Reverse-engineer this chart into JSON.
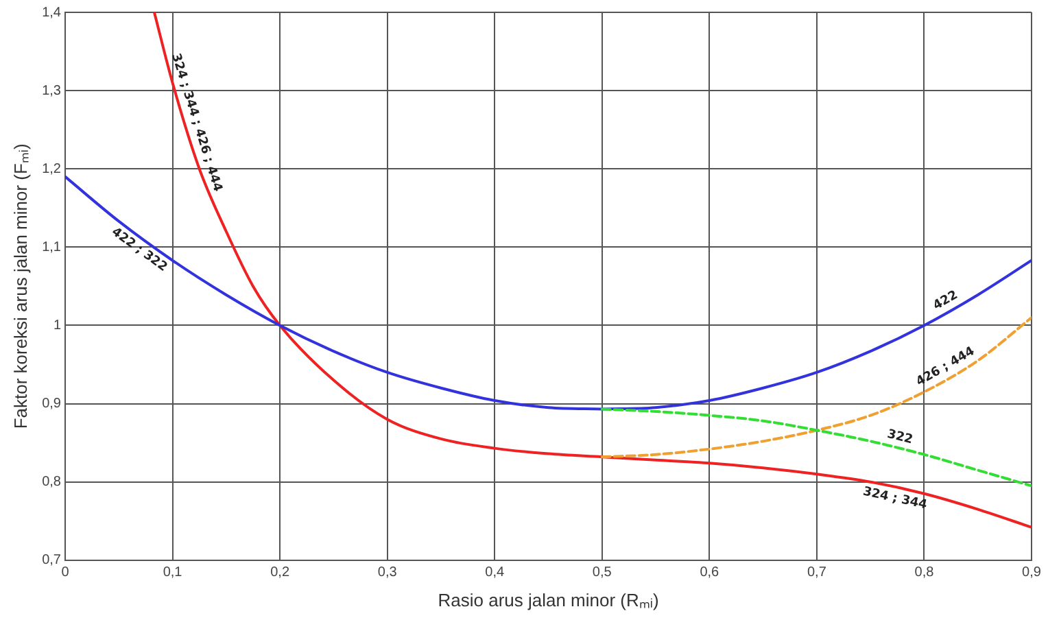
{
  "chart_data": {
    "type": "line",
    "xlabel": "Rasio arus jalan minor (Rₘᵢ)",
    "ylabel": "Faktor koreksi arus jalan minor (Fₘᵢ)",
    "xlim": [
      0,
      0.9
    ],
    "ylim": [
      0.7,
      1.4
    ],
    "xticks": [
      0,
      {
        "value": 0.1,
        "label": "0,1"
      },
      {
        "value": 0.2,
        "label": "0,2"
      },
      {
        "value": 0.3,
        "label": "0,3"
      },
      {
        "value": 0.4,
        "label": "0,4"
      },
      {
        "value": 0.5,
        "label": "0,5"
      },
      {
        "value": 0.6,
        "label": "0,6"
      },
      {
        "value": 0.7,
        "label": "0,7"
      },
      {
        "value": 0.8,
        "label": "0,8"
      },
      {
        "value": 0.9,
        "label": "0,9"
      }
    ],
    "yticks": [
      {
        "value": 0.7,
        "label": "0,7"
      },
      {
        "value": 0.8,
        "label": "0,8"
      },
      {
        "value": 0.9,
        "label": "0,9"
      },
      1,
      {
        "value": 1.1,
        "label": "1,1"
      },
      {
        "value": 1.2,
        "label": "1,2"
      },
      {
        "value": 1.3,
        "label": "1,3"
      },
      {
        "value": 1.4,
        "label": "1,4"
      }
    ],
    "grid": true,
    "legend": false,
    "marker": "none",
    "series": [
      {
        "name": "422 ; 322",
        "color": "#3333dd",
        "line_style": "solid",
        "x": [
          0,
          0.05,
          0.1,
          0.15,
          0.2,
          0.25,
          0.3,
          0.35,
          0.4,
          0.45,
          0.5
        ],
        "values": [
          1.19,
          1.133,
          1.083,
          1.039,
          1.0,
          0.967,
          0.94,
          0.92,
          0.904,
          0.895,
          0.893
        ]
      },
      {
        "name": "422",
        "color": "#3333dd",
        "line_style": "solid",
        "x": [
          0.5,
          0.55,
          0.6,
          0.65,
          0.7,
          0.75,
          0.8,
          0.85,
          0.9
        ],
        "values": [
          0.893,
          0.895,
          0.904,
          0.92,
          0.94,
          0.967,
          1.0,
          1.039,
          1.083
        ]
      },
      {
        "name": "324 ; 344 ; 426 ; 444",
        "color": "#ee2222",
        "line_style": "solid",
        "x": [
          0.083,
          0.1,
          0.125,
          0.15,
          0.175,
          0.2,
          0.25,
          0.3,
          0.35,
          0.4,
          0.45,
          0.5
        ],
        "values": [
          1.4,
          1.31,
          1.2,
          1.12,
          1.05,
          1.0,
          0.93,
          0.88,
          0.855,
          0.843,
          0.836,
          0.832
        ]
      },
      {
        "name": "324 ; 344",
        "color": "#ee2222",
        "line_style": "solid",
        "x": [
          0.5,
          0.55,
          0.6,
          0.65,
          0.7,
          0.75,
          0.8,
          0.85,
          0.9
        ],
        "values": [
          0.832,
          0.828,
          0.824,
          0.818,
          0.81,
          0.8,
          0.785,
          0.765,
          0.742
        ]
      },
      {
        "name": "322",
        "color": "#33dd33",
        "line_style": "dashed",
        "x": [
          0.5,
          0.55,
          0.6,
          0.65,
          0.7,
          0.75,
          0.8,
          0.85,
          0.9
        ],
        "values": [
          0.893,
          0.89,
          0.885,
          0.878,
          0.866,
          0.852,
          0.835,
          0.815,
          0.795
        ]
      },
      {
        "name": "426 ; 444",
        "color": "#f0a030",
        "line_style": "dashed",
        "x": [
          0.5,
          0.55,
          0.6,
          0.65,
          0.7,
          0.75,
          0.8,
          0.85,
          0.9
        ],
        "values": [
          0.832,
          0.835,
          0.842,
          0.852,
          0.866,
          0.885,
          0.915,
          0.955,
          1.01
        ]
      }
    ]
  }
}
